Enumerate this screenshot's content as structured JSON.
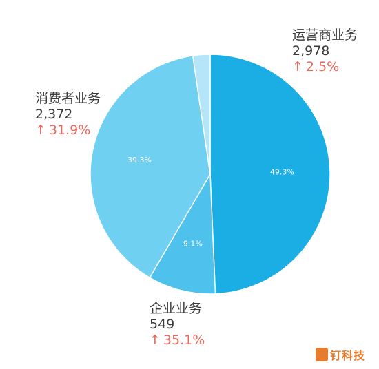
{
  "chart_data": {
    "type": "pie",
    "slices": [
      {
        "name": "运营商业务",
        "value": 2978,
        "value_label": "2,978",
        "growth": "2.5%",
        "percent_label": "49.3%",
        "color": "#1baee5"
      },
      {
        "name": "企业业务",
        "value": 549,
        "value_label": "549",
        "growth": "35.1%",
        "percent_label": "9.1%",
        "color": "#4fc1ed"
      },
      {
        "name": "消费者业务",
        "value": 2372,
        "value_label": "2,372",
        "growth": "31.9%",
        "percent_label": "39.3%",
        "color": "#6fd0f2"
      },
      {
        "name": "",
        "value": 140,
        "value_label": "",
        "growth": "",
        "percent_label": "",
        "color": "#b4e5f8"
      }
    ],
    "start_angle_deg": 0,
    "direction": "clockwise"
  },
  "arrow_glyph": "↑",
  "watermark": {
    "logo_letter": "D",
    "text": "钉科技"
  },
  "colors": {
    "growth": "#e8675b",
    "label": "#3a3a3a"
  }
}
